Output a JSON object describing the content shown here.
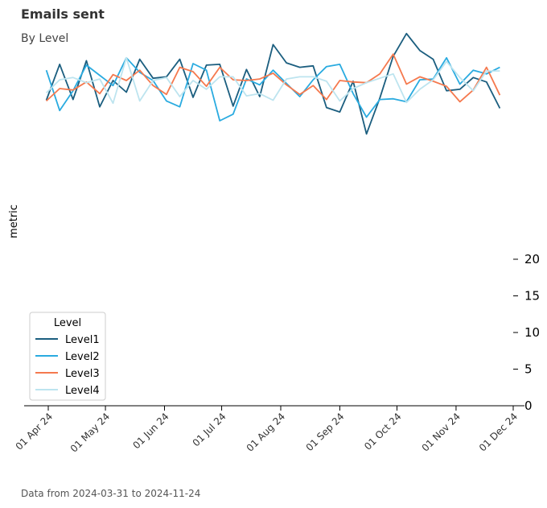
{
  "header": {
    "title": "Emails sent",
    "subtitle": "By Level"
  },
  "footer": {
    "note": "Data from 2024-03-31 to 2024-11-24"
  },
  "chart_data": {
    "type": "line",
    "ylabel": "metric",
    "xlabel": "",
    "x_tick_labels": [
      "01 Apr 24",
      "01 May 24",
      "01 Jun 24",
      "01 Jul 24",
      "01 Aug 24",
      "01 Sep 24",
      "01 Oct 24",
      "01 Nov 24",
      "01 Dec 24"
    ],
    "y_tick_labels": [
      "0",
      "5",
      "10",
      "15",
      "20"
    ],
    "legend": {
      "title": "Level",
      "placement": "lower-left"
    },
    "x": [
      "2024-03-31",
      "2024-04-07",
      "2024-04-14",
      "2024-04-21",
      "2024-04-28",
      "2024-05-05",
      "2024-05-12",
      "2024-05-19",
      "2024-05-26",
      "2024-06-02",
      "2024-06-09",
      "2024-06-16",
      "2024-06-23",
      "2024-06-30",
      "2024-07-07",
      "2024-07-14",
      "2024-07-21",
      "2024-07-28",
      "2024-08-04",
      "2024-08-11",
      "2024-08-18",
      "2024-08-25",
      "2024-09-01",
      "2024-09-08",
      "2024-09-15",
      "2024-09-22",
      "2024-09-29",
      "2024-10-06",
      "2024-10-13",
      "2024-10-20",
      "2024-10-27",
      "2024-11-03",
      "2024-11-10",
      "2024-11-17",
      "2024-11-24"
    ],
    "series": [
      {
        "name": "Level1",
        "color": "#1b5e7f",
        "values": [
          41.7,
          46.6,
          41.8,
          47.1,
          40.8,
          44.4,
          42.8,
          47.3,
          44.7,
          44.9,
          47.3,
          42.1,
          46.5,
          46.6,
          40.9,
          45.9,
          42.2,
          49.3,
          46.8,
          46.2,
          46.4,
          40.7,
          40.1,
          44.3,
          37.1,
          42.0,
          47.7,
          50.8,
          48.5,
          47.3,
          43.0,
          43.2,
          44.8,
          44.2,
          40.6
        ]
      },
      {
        "name": "Level2",
        "color": "#2aabe0",
        "values": [
          45.8,
          40.3,
          43.0,
          46.5,
          45.1,
          43.7,
          47.5,
          45.5,
          44.4,
          41.6,
          40.8,
          46.7,
          45.8,
          38.9,
          39.8,
          44.6,
          43.8,
          45.8,
          44.0,
          42.2,
          44.5,
          46.3,
          46.6,
          42.6,
          39.4,
          41.8,
          41.9,
          41.5,
          44.5,
          44.6,
          47.5,
          43.9,
          45.8,
          45.3,
          46.2
        ]
      },
      {
        "name": "Level3",
        "color": "#f5794e",
        "values": [
          41.6,
          43.3,
          43.1,
          44.2,
          42.6,
          45.2,
          44.4,
          45.8,
          43.7,
          42.5,
          46.2,
          45.6,
          43.6,
          46.2,
          44.5,
          44.4,
          44.6,
          45.4,
          43.8,
          42.5,
          43.7,
          41.8,
          44.4,
          44.2,
          44.1,
          45.3,
          48.0,
          43.9,
          44.9,
          44.3,
          43.6,
          41.5,
          43.1,
          46.2,
          42.4
        ]
      },
      {
        "name": "Level4",
        "color": "#bde4ef",
        "values": [
          42.7,
          44.5,
          44.8,
          44.1,
          44.6,
          41.3,
          47.5,
          41.6,
          44.4,
          44.8,
          42.2,
          44.4,
          43.2,
          44.9,
          44.9,
          42.3,
          42.6,
          41.7,
          44.6,
          44.9,
          44.9,
          44.3,
          41.6,
          43.3,
          44.1,
          44.7,
          45.3,
          41.4,
          43.2,
          44.5,
          47.0,
          44.8,
          43.0,
          45.7,
          45.7
        ]
      }
    ]
  }
}
